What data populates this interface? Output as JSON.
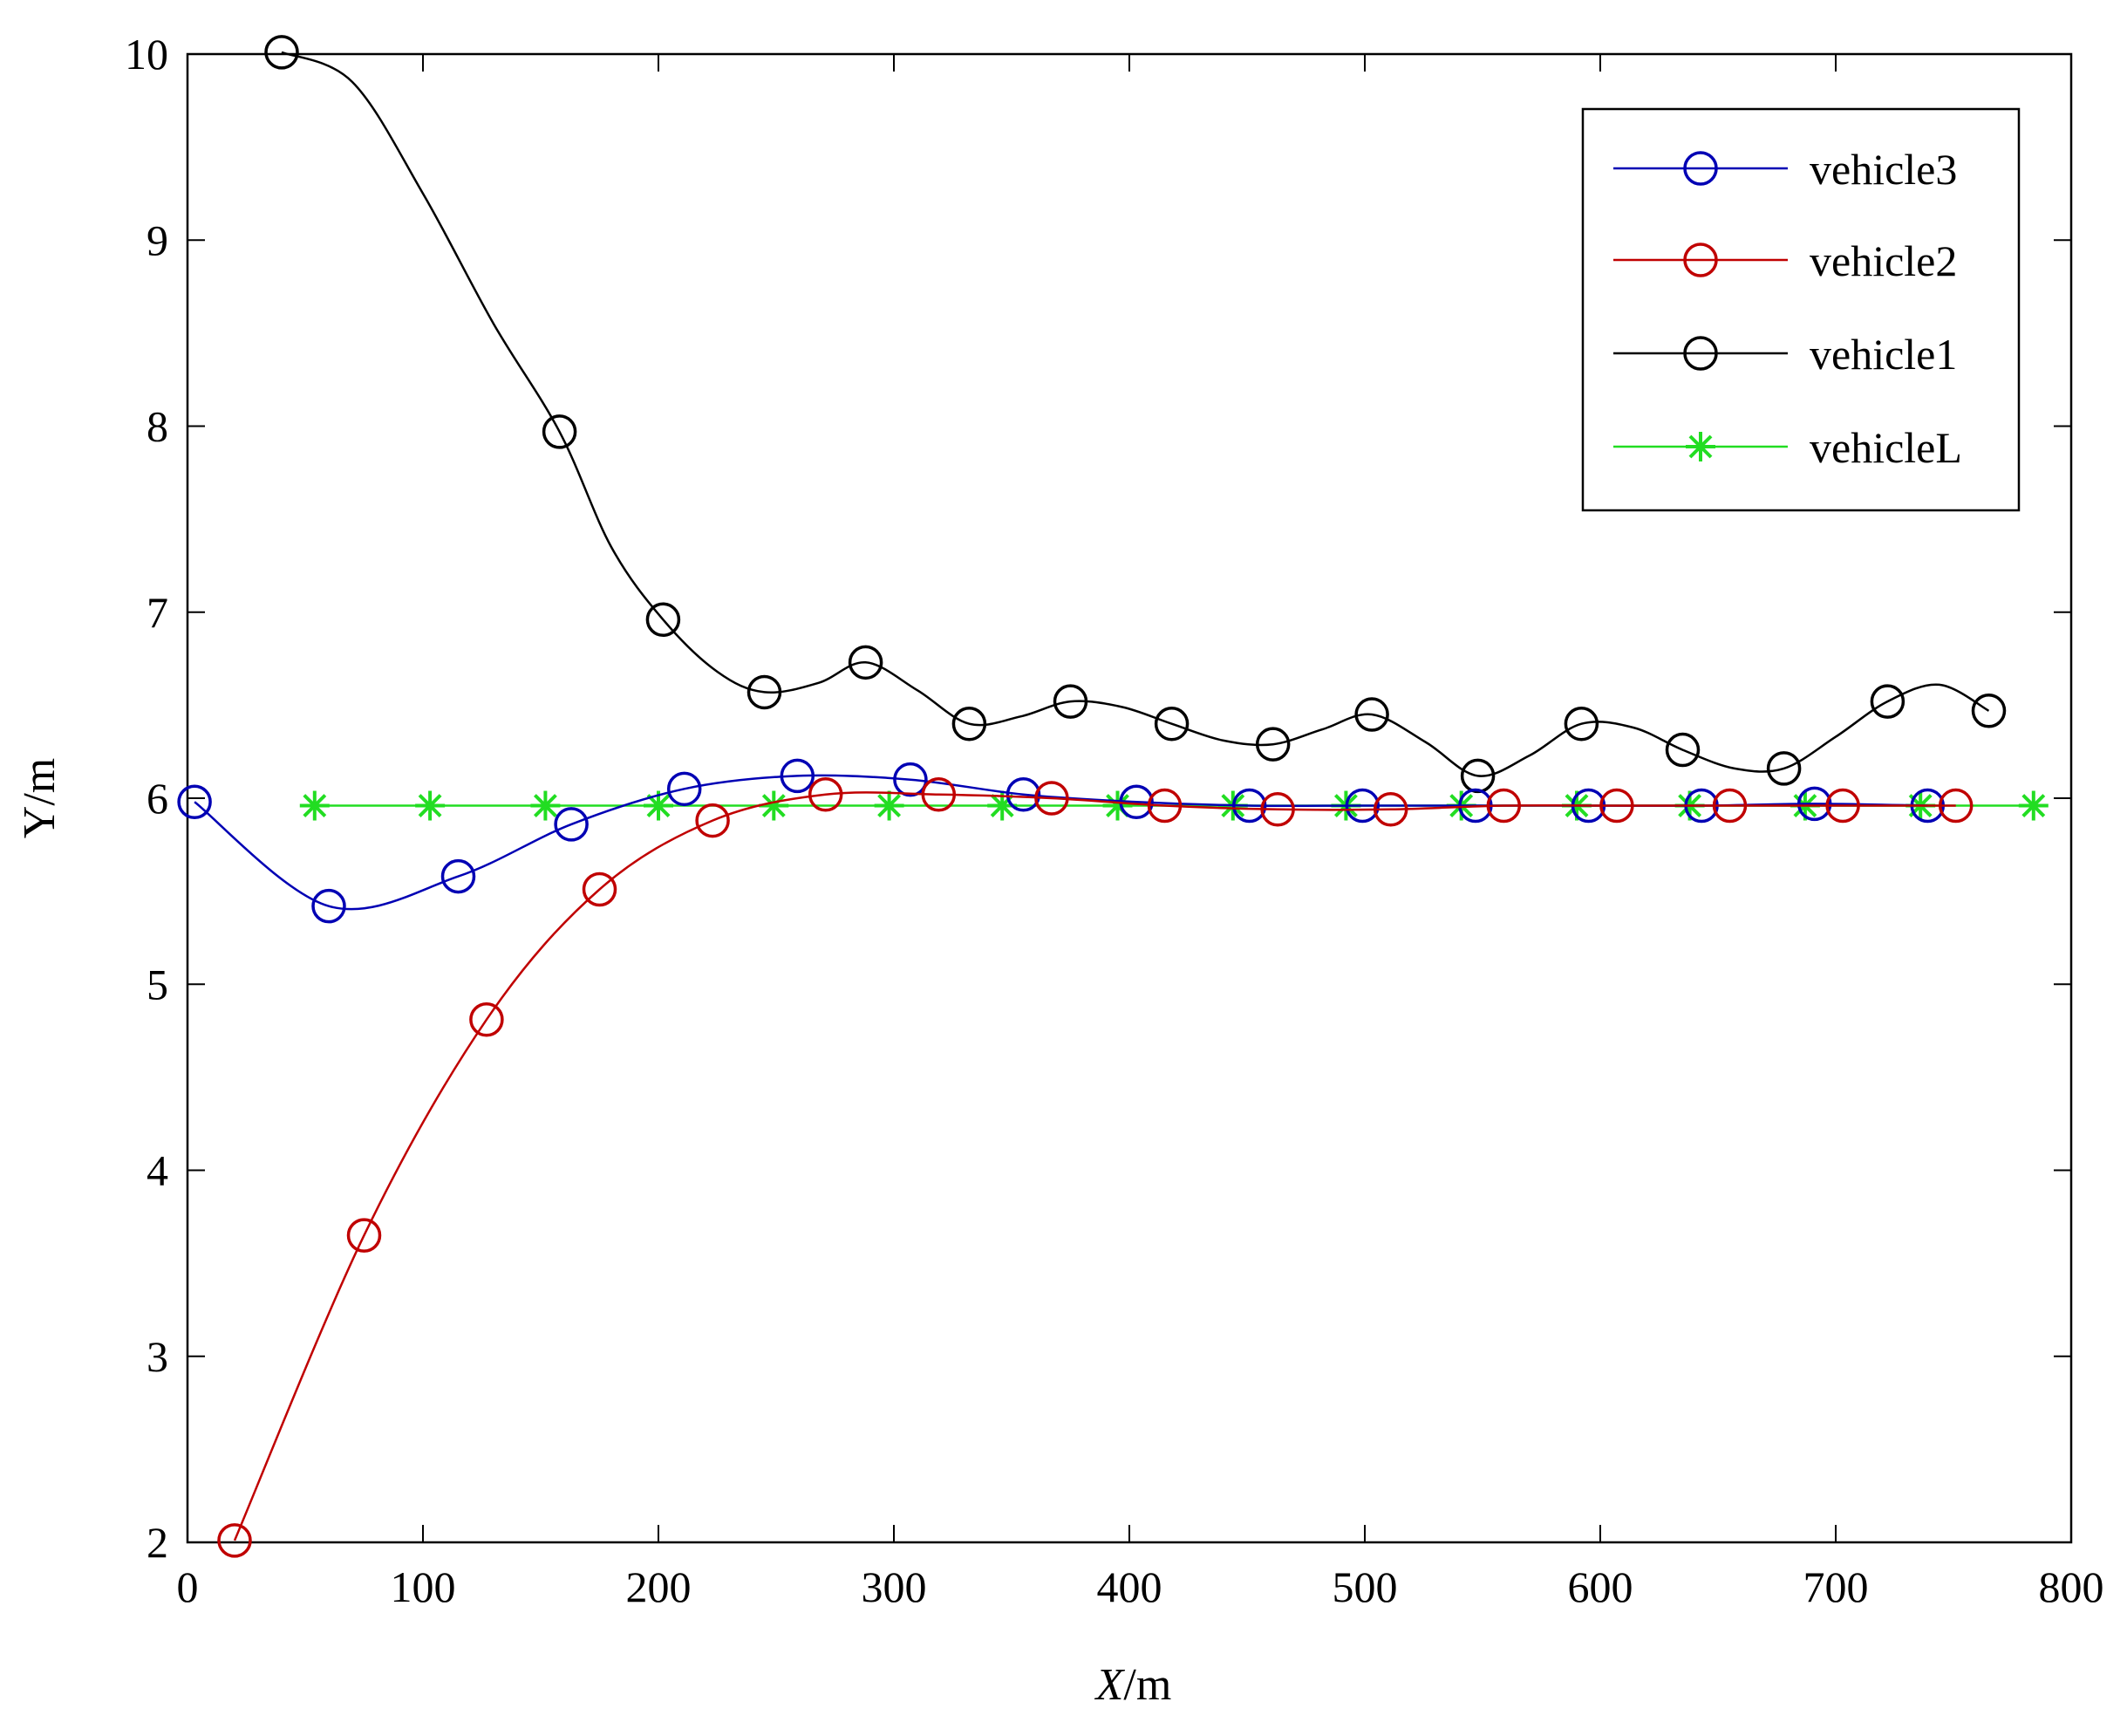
{
  "chart_data": {
    "type": "line",
    "xlabel_italic": "X",
    "xlabel_unit": "/m",
    "ylabel": "Y/m",
    "xlim": [
      0,
      800
    ],
    "ylim": [
      2,
      10
    ],
    "x_ticks": [
      0,
      100,
      200,
      300,
      400,
      500,
      600,
      700,
      800
    ],
    "y_ticks": [
      2,
      3,
      4,
      5,
      6,
      7,
      8,
      9,
      10
    ],
    "grid": false,
    "legend_position": "top-right",
    "series": [
      {
        "name": "vehicle3",
        "color": "#0000b4",
        "marker": "circle",
        "x": [
          3,
          60,
          115,
          163,
          211,
          259,
          307,
          355,
          403,
          451,
          499,
          547,
          595,
          643,
          691,
          739
        ],
        "y": [
          5.98,
          5.42,
          5.58,
          5.86,
          6.05,
          6.12,
          6.1,
          6.02,
          5.98,
          5.96,
          5.96,
          5.96,
          5.96,
          5.96,
          5.97,
          5.96
        ],
        "markers_x": [
          3,
          60,
          115,
          163,
          211,
          259,
          307,
          355,
          403,
          451,
          499,
          547,
          595,
          643,
          691,
          739
        ],
        "markers_y": [
          5.98,
          5.42,
          5.58,
          5.86,
          6.05,
          6.12,
          6.1,
          6.02,
          5.98,
          5.96,
          5.96,
          5.96,
          5.96,
          5.96,
          5.97,
          5.96
        ]
      },
      {
        "name": "vehicle2",
        "color": "#c00000",
        "marker": "circle",
        "x": [
          20,
          75,
          127,
          175,
          223,
          271,
          319,
          367,
          415,
          463,
          511,
          559,
          607,
          655,
          703,
          751
        ],
        "y": [
          2.01,
          3.65,
          4.81,
          5.51,
          5.88,
          6.02,
          6.02,
          6.0,
          5.96,
          5.94,
          5.94,
          5.96,
          5.96,
          5.96,
          5.96,
          5.96
        ],
        "markers_x": [
          20,
          75,
          127,
          175,
          223,
          271,
          319,
          367,
          415,
          463,
          511,
          559,
          607,
          655,
          703,
          751
        ],
        "markers_y": [
          2.01,
          3.65,
          4.81,
          5.51,
          5.88,
          6.02,
          6.02,
          6.0,
          5.96,
          5.94,
          5.94,
          5.96,
          5.96,
          5.96,
          5.96,
          5.96
        ]
      },
      {
        "name": "vehicle1",
        "color": "#000000",
        "marker": "circle",
        "x": [
          40,
          70,
          100,
          130,
          158,
          180,
          202,
          225,
          245,
          268,
          288,
          310,
          332,
          354,
          375,
          397,
          418,
          440,
          461,
          482,
          503,
          526,
          548,
          570,
          592,
          614,
          635,
          657,
          678,
          700,
          722,
          744,
          765
        ],
        "y": [
          10.01,
          9.85,
          9.25,
          8.55,
          7.97,
          7.35,
          6.96,
          6.68,
          6.57,
          6.62,
          6.73,
          6.58,
          6.4,
          6.44,
          6.52,
          6.49,
          6.4,
          6.31,
          6.29,
          6.37,
          6.45,
          6.3,
          6.12,
          6.23,
          6.4,
          6.38,
          6.26,
          6.16,
          6.16,
          6.33,
          6.52,
          6.61,
          6.47
        ],
        "markers_x": [
          40,
          158,
          202,
          245,
          288,
          332,
          375,
          418,
          461,
          503,
          548,
          592,
          635,
          678,
          722,
          765
        ],
        "markers_y": [
          10.01,
          7.97,
          6.96,
          6.57,
          6.73,
          6.4,
          6.52,
          6.4,
          6.29,
          6.45,
          6.12,
          6.4,
          6.26,
          6.16,
          6.52,
          6.47
        ]
      },
      {
        "name": "vehicleL",
        "color": "#22dd22",
        "marker": "asterisk",
        "x": [
          54,
          103,
          152,
          200,
          249,
          298,
          346,
          395,
          444,
          492,
          541,
          590,
          638,
          687,
          736,
          784
        ],
        "y": [
          5.96,
          5.96,
          5.96,
          5.96,
          5.96,
          5.96,
          5.96,
          5.96,
          5.96,
          5.96,
          5.96,
          5.96,
          5.96,
          5.96,
          5.96,
          5.96
        ],
        "markers_x": [
          54,
          103,
          152,
          200,
          249,
          298,
          346,
          395,
          444,
          492,
          541,
          590,
          638,
          687,
          736,
          784
        ],
        "markers_y": [
          5.96,
          5.96,
          5.96,
          5.96,
          5.96,
          5.96,
          5.96,
          5.96,
          5.96,
          5.96,
          5.96,
          5.96,
          5.96,
          5.96,
          5.96,
          5.96
        ]
      }
    ],
    "legend_order": [
      "vehicle3",
      "vehicle2",
      "vehicle1",
      "vehicleL"
    ]
  }
}
